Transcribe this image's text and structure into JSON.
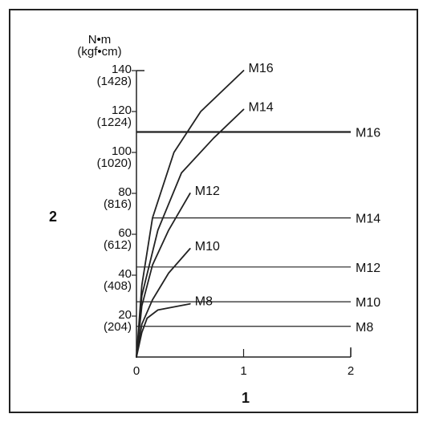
{
  "chart_data": {
    "type": "line",
    "unit_label": "N•m",
    "unit_label_alt": "(kgf•cm)",
    "x_axis_index_label": "1",
    "y_axis_index_label": "2",
    "xlim": [
      0,
      2
    ],
    "ylim": [
      0,
      140
    ],
    "x_ticks": [
      {
        "value": 0,
        "label": "0"
      },
      {
        "value": 1,
        "label": "1"
      },
      {
        "value": 2,
        "label": "2"
      }
    ],
    "y_ticks": [
      {
        "value": 20,
        "label": "20",
        "alt_label": "(204)"
      },
      {
        "value": 40,
        "label": "40",
        "alt_label": "(408)"
      },
      {
        "value": 60,
        "label": "60",
        "alt_label": "(612)"
      },
      {
        "value": 80,
        "label": "80",
        "alt_label": "(816)"
      },
      {
        "value": 100,
        "label": "100",
        "alt_label": "(1020)"
      },
      {
        "value": 120,
        "label": "120",
        "alt_label": "(1224)"
      },
      {
        "value": 140,
        "label": "140",
        "alt_label": "(1428)"
      }
    ],
    "curves": [
      {
        "name": "M16",
        "points": [
          [
            0,
            0
          ],
          [
            0.05,
            35
          ],
          [
            0.15,
            68
          ],
          [
            0.35,
            100
          ],
          [
            0.6,
            120
          ],
          [
            1.0,
            140
          ]
        ]
      },
      {
        "name": "M14",
        "points": [
          [
            0,
            0
          ],
          [
            0.05,
            30
          ],
          [
            0.2,
            62
          ],
          [
            0.42,
            90
          ],
          [
            0.72,
            107
          ],
          [
            1.0,
            121
          ]
        ]
      },
      {
        "name": "M12",
        "points": [
          [
            0,
            0
          ],
          [
            0.05,
            25
          ],
          [
            0.15,
            45
          ],
          [
            0.3,
            62
          ],
          [
            0.5,
            80
          ]
        ]
      },
      {
        "name": "M10",
        "points": [
          [
            0,
            0
          ],
          [
            0.05,
            16
          ],
          [
            0.15,
            28
          ],
          [
            0.3,
            41
          ],
          [
            0.5,
            53
          ]
        ]
      },
      {
        "name": "M8",
        "points": [
          [
            0,
            0
          ],
          [
            0.05,
            12
          ],
          [
            0.1,
            19
          ],
          [
            0.2,
            23
          ],
          [
            0.5,
            26
          ]
        ]
      }
    ],
    "levels": [
      {
        "name": "M16",
        "value": 110,
        "from": 0,
        "to": 2
      },
      {
        "name": "M14",
        "value": 68,
        "from": 0.15,
        "to": 2
      },
      {
        "name": "M12",
        "value": 44,
        "from": 0,
        "to": 2
      },
      {
        "name": "M10",
        "value": 27,
        "from": 0,
        "to": 2
      },
      {
        "name": "M8",
        "value": 15,
        "from": 0,
        "to": 2
      }
    ]
  }
}
